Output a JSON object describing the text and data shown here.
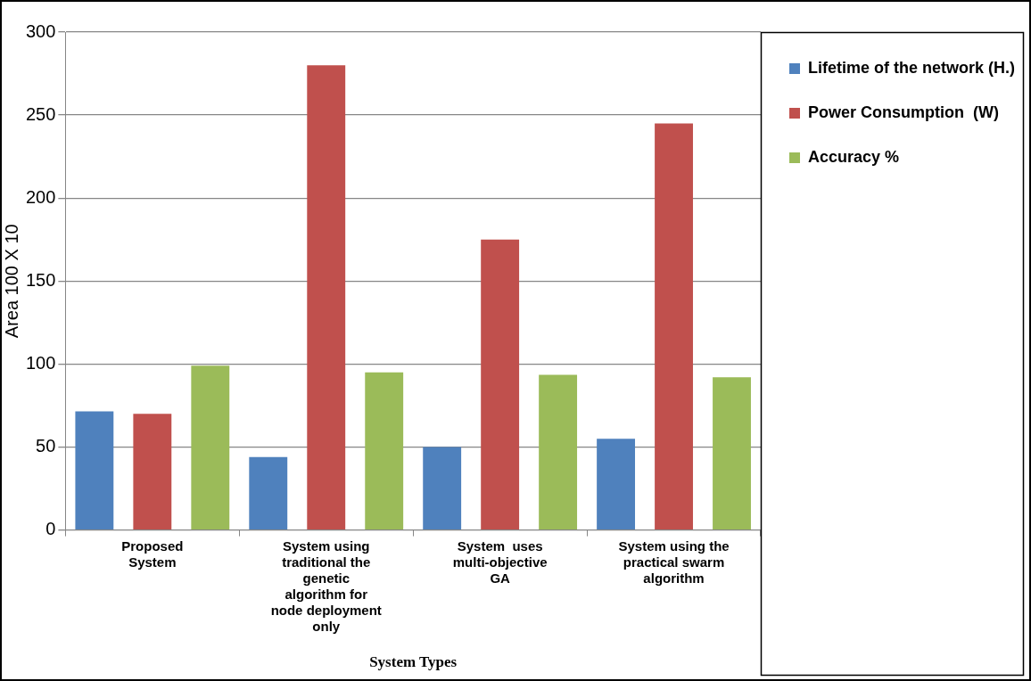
{
  "chart_data": {
    "type": "bar",
    "xlabel": "System Types",
    "ylabel": "Area 100 X 10",
    "categories": [
      "Proposed System",
      "System using traditional the genetic algorithm for node deployment only",
      "System  uses multi-objective GA",
      "System using the practical swarm algorithm"
    ],
    "series": [
      {
        "name": "Lifetime of the network (H.)",
        "color": "#4f81bd",
        "values": [
          71.5,
          44,
          50,
          55
        ]
      },
      {
        "name": "Power Consumption  (W)",
        "color": "#c0504d",
        "values": [
          70,
          280,
          175,
          245
        ]
      },
      {
        "name": "Accuracy %",
        "color": "#9bbb59",
        "values": [
          99,
          95,
          93.5,
          92
        ]
      }
    ],
    "ylim": [
      0,
      300
    ],
    "yticks": [
      0,
      50,
      100,
      150,
      200,
      250,
      300
    ],
    "grid": "y",
    "legend": "right"
  }
}
